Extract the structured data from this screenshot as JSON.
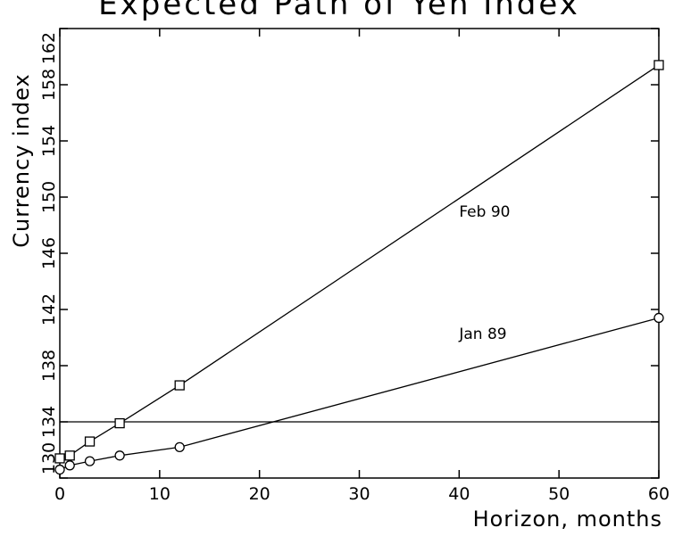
{
  "chart_data": {
    "type": "line",
    "title": "Expected Path of Yen Index",
    "xlabel": "Horizon, months",
    "ylabel": "Currency index",
    "xlim": [
      0,
      60
    ],
    "ylim": [
      130,
      162
    ],
    "xticks": [
      0,
      10,
      20,
      30,
      40,
      50,
      60
    ],
    "yticks": [
      130,
      134,
      138,
      142,
      146,
      150,
      154,
      158,
      162
    ],
    "reference_line": {
      "y": 134
    },
    "series": [
      {
        "name": "Feb 90",
        "marker": "square",
        "x": [
          0,
          1,
          3,
          6,
          12,
          60
        ],
        "y": [
          131.4,
          131.6,
          132.6,
          133.9,
          136.6,
          159.4
        ]
      },
      {
        "name": "Jan 89",
        "marker": "circle",
        "x": [
          0,
          1,
          3,
          6,
          12,
          60
        ],
        "y": [
          130.6,
          130.9,
          131.2,
          131.6,
          132.2,
          141.4
        ]
      }
    ],
    "annotations": [
      {
        "text": "Feb 90",
        "x": 40,
        "y": 148.6
      },
      {
        "text": "Jan 89",
        "x": 40,
        "y": 139.9
      }
    ],
    "grid": false,
    "legend": "none"
  }
}
